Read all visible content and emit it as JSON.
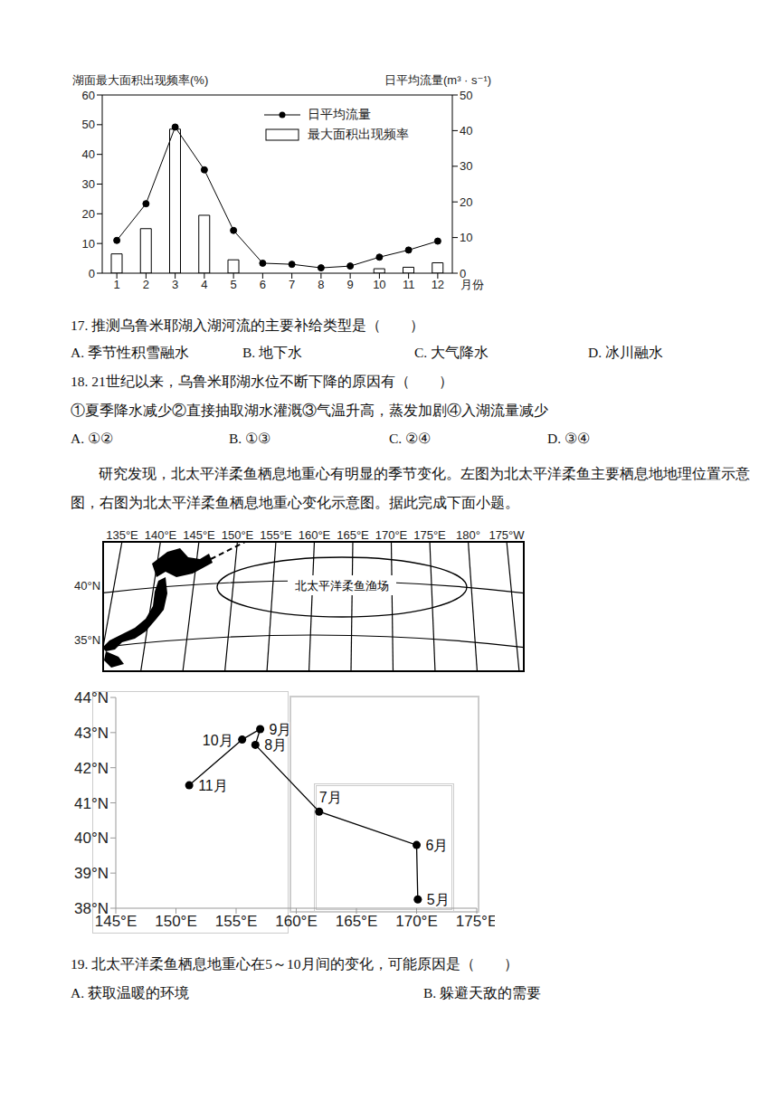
{
  "chart_data": [
    {
      "type": "bar",
      "categories": [
        "1",
        "2",
        "3",
        "4",
        "5",
        "6",
        "7",
        "8",
        "9",
        "10",
        "11",
        "12"
      ],
      "xlabel": "月份",
      "ylabel": "湖面最大面积出现频率(%)",
      "y2label": "日平均流量(m³ · s⁻¹)",
      "series": [
        {
          "name": "日平均流量",
          "type": "line",
          "axis": "y2",
          "color": "#000000",
          "marker": "circle",
          "values": [
            9.2,
            19.5,
            41,
            29,
            12,
            2.8,
            2.5,
            1.5,
            2,
            4.5,
            6.5,
            9
          ]
        },
        {
          "name": "最大面积出现频率",
          "type": "bar",
          "color": "#ffffff",
          "values": [
            6.5,
            15,
            48.5,
            19.5,
            4.5,
            0,
            0,
            0,
            0,
            1.5,
            2,
            3.5
          ]
        }
      ],
      "ylim": [
        0,
        60
      ],
      "yticks": [
        0,
        10,
        20,
        30,
        40,
        50,
        60
      ],
      "y2lim": [
        0,
        50
      ],
      "y2ticks": [
        0,
        10,
        20,
        30,
        40,
        50
      ],
      "legend": "upper right",
      "grid": false
    },
    {
      "type": "line",
      "color": "#000000",
      "marker": "circle",
      "x": [
        170.1,
        170,
        161.9,
        156.6,
        157,
        155.5,
        151.1
      ],
      "y": [
        38.25,
        39.8,
        40.75,
        42.65,
        43.1,
        42.8,
        41.5
      ],
      "point_labels": [
        "5月",
        "6月",
        "7月",
        "8月",
        "9月",
        "10月",
        "11月"
      ],
      "xlim": [
        145,
        175
      ],
      "xticks": [
        {
          "value": 145,
          "label": "145°E"
        },
        {
          "value": 150,
          "label": "150°E"
        },
        {
          "value": 155,
          "label": "155°E"
        },
        {
          "value": 160,
          "label": "160°E"
        },
        {
          "value": 165,
          "label": "165°E"
        },
        {
          "value": 170,
          "label": "170°E"
        },
        {
          "value": 175,
          "label": "175°E"
        }
      ],
      "ylim": [
        38,
        44
      ],
      "yticks": [
        {
          "value": 38,
          "label": "38°N"
        },
        {
          "value": 39,
          "label": "39°N"
        },
        {
          "value": 40,
          "label": "40°N"
        },
        {
          "value": 41,
          "label": "41°N"
        },
        {
          "value": 42,
          "label": "42°N"
        },
        {
          "value": 43,
          "label": "43°N"
        },
        {
          "value": 44,
          "label": "44°N"
        }
      ],
      "grid": false
    }
  ],
  "questions": [
    {
      "stem": "17. 推测乌鲁米耶湖入湖河流的主要补给类型是（　　）",
      "options": [
        "A. 季节性积雪融水",
        "B. 地下水",
        "C. 大气降水",
        "D. 冰川融水"
      ]
    },
    {
      "stem": "18. 21世纪以来，乌鲁米耶湖水位不断下降的原因有（　　）",
      "statements": "①夏季降水减少②直接抽取湖水灌溉③气温升高，蒸发加剧④入湖流量减少",
      "options": [
        "A. ①②",
        "B. ①③",
        "C. ②④",
        "D. ③④"
      ]
    }
  ],
  "passage": "研究发现，北太平洋柔鱼栖息地重心有明显的季节变化。左图为北太平洋柔鱼主要栖息地地理位置示意图，右图为北太平洋柔鱼栖息地重心变化示意图。据此完成下面小题。",
  "map": {
    "longitude_labels": [
      "135°E",
      "140°E",
      "145°E",
      "150°E",
      "155°E",
      "160°E",
      "165°E",
      "170°E",
      "175°E",
      "180°",
      "175°W"
    ],
    "latitude_labels": [
      "40°N",
      "35°N"
    ],
    "area_label": "北太平洋柔鱼渔场"
  },
  "question_19": {
    "stem": "19. 北太平洋柔鱼栖息地重心在5～10月间的变化，可能原因是（　　）",
    "options": [
      "A. 获取温暖的环境",
      "B. 躲避天敌的需要"
    ]
  }
}
